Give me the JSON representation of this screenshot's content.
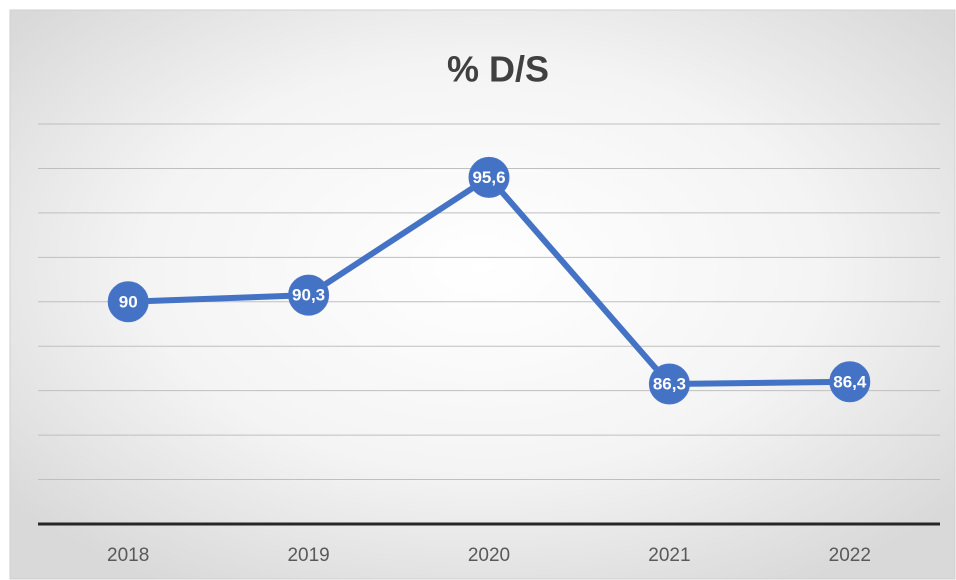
{
  "chart_data": {
    "type": "line",
    "title": "% D/S",
    "categories": [
      "2018",
      "2019",
      "2020",
      "2021",
      "2022"
    ],
    "values": [
      90,
      90.3,
      95.6,
      86.3,
      86.4
    ],
    "value_labels": [
      "90",
      "90,3",
      "95,6",
      "86,3",
      "86,4"
    ],
    "color": "#4472c4",
    "ylim": [
      80,
      98
    ],
    "yticks": [
      80,
      82,
      84,
      86,
      88,
      90,
      92,
      94,
      96,
      98
    ],
    "grid": true
  }
}
